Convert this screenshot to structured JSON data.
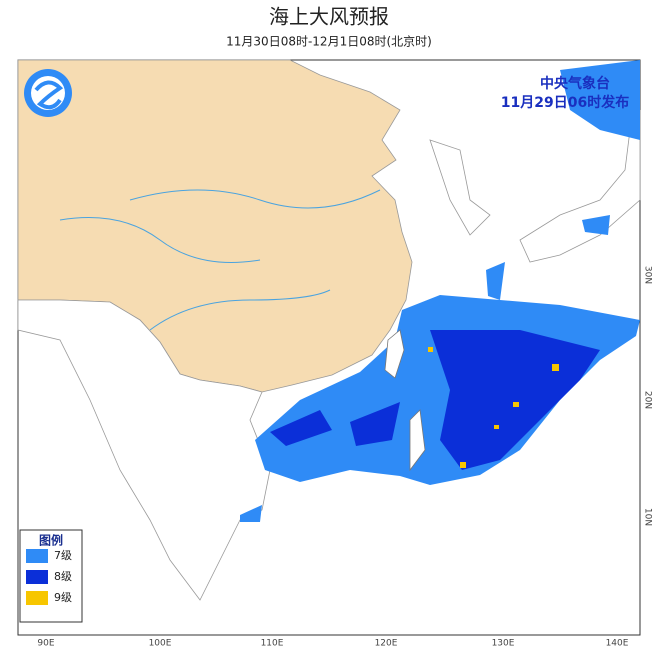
{
  "header": {
    "title": "海上大风预报",
    "subtitle": "11月30日08时-12月1日08时(北京时)"
  },
  "issuer": {
    "name": "中央气象台",
    "issued": "11月29日06时发布"
  },
  "legend": {
    "title": "图例",
    "items": [
      {
        "label": "7级",
        "color": "#2f8bf6"
      },
      {
        "label": "8级",
        "color": "#0b2fd8"
      },
      {
        "label": "9级",
        "color": "#f7c600"
      }
    ]
  },
  "map": {
    "lon_labels": [
      "90E",
      "100E",
      "110E",
      "120E",
      "130E",
      "140E"
    ],
    "lat_labels": [
      "30N",
      "20N",
      "10N"
    ]
  }
}
